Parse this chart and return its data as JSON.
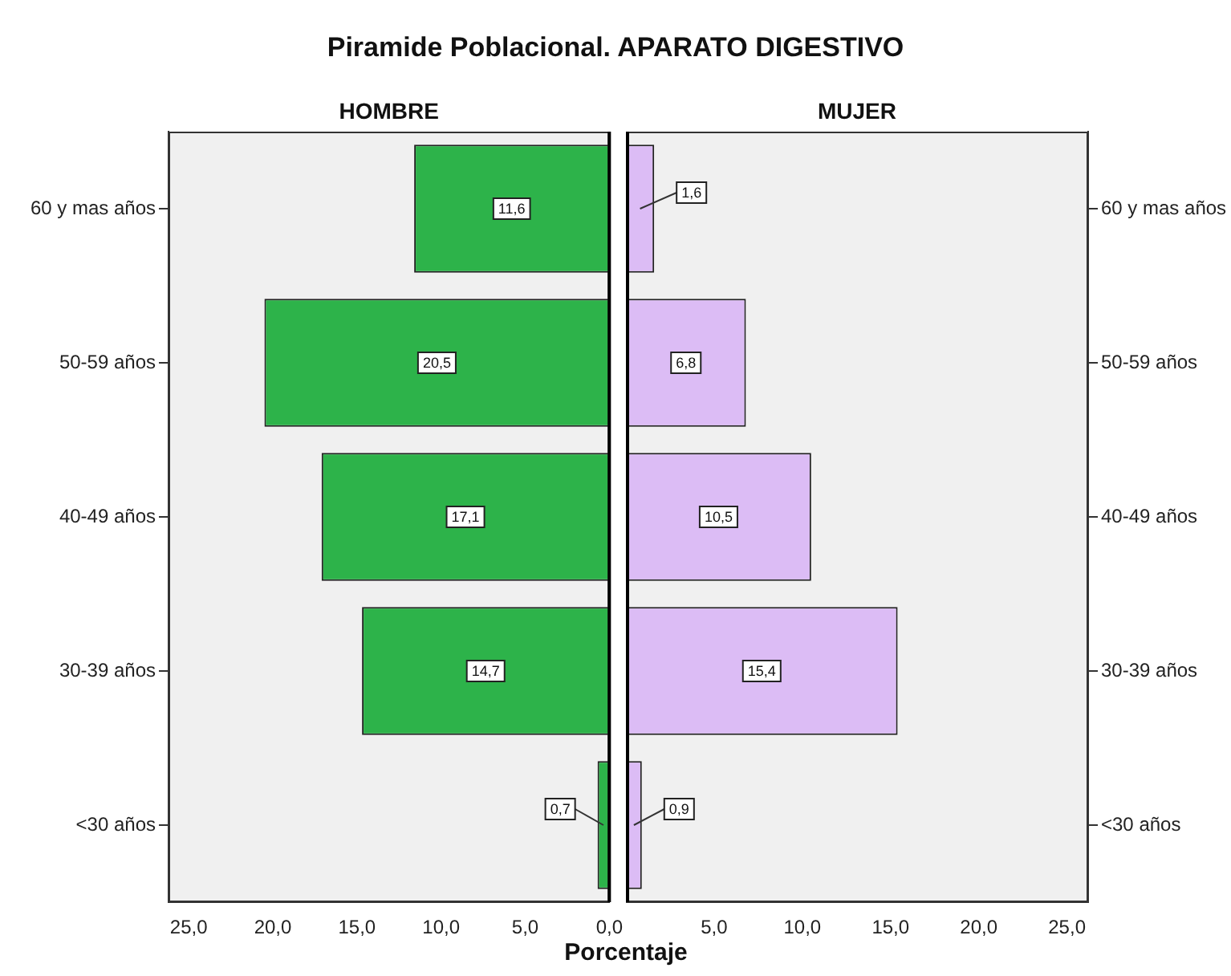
{
  "chart_data": [
    {
      "type": "bar",
      "orientation": "horizontal",
      "title": "Piramide Poblacional.  APARATO DIGESTIVO",
      "subtitle": "HOMBRE",
      "categories": [
        "60 y mas años",
        "50-59 años",
        "40-49 años",
        "30-39 años",
        "<30 años"
      ],
      "series": [
        {
          "color": "#2db34a",
          "values": [
            11.6,
            20.5,
            17.1,
            14.7,
            0.7
          ],
          "value_labels": [
            "11,6",
            "20,5",
            "17,1",
            "14,7",
            "0,7"
          ]
        }
      ],
      "xlim": [
        26.2,
        0
      ],
      "xticks": [
        {
          "value": 25,
          "label": "25,0"
        },
        {
          "value": 20,
          "label": "20,0"
        },
        {
          "value": 15,
          "label": "15,0"
        },
        {
          "value": 10,
          "label": "10,0"
        },
        {
          "value": 5,
          "label": "5,0"
        },
        {
          "value": 0,
          "label": "0,0"
        }
      ],
      "ref_lines": [
        {
          "axis": "x",
          "value": 0,
          "color": "#000000"
        }
      ]
    },
    {
      "type": "bar",
      "orientation": "horizontal",
      "subtitle": "MUJER",
      "xlabel": "Porcentaje",
      "categories": [
        "60 y mas años",
        "50-59 años",
        "40-49 años",
        "30-39 años",
        "<30 años"
      ],
      "series": [
        {
          "color": "#dcbcf5",
          "values": [
            1.6,
            6.8,
            10.5,
            15.4,
            0.9
          ],
          "value_labels": [
            "1,6",
            "6,8",
            "10,5",
            "15,4",
            "0,9"
          ]
        }
      ],
      "xlim": [
        0,
        26.2
      ],
      "xticks": [
        {
          "value": 5,
          "label": "5,0"
        },
        {
          "value": 10,
          "label": "10,0"
        },
        {
          "value": 15,
          "label": "15,0"
        },
        {
          "value": 20,
          "label": "20,0"
        },
        {
          "value": 25,
          "label": "25,0"
        }
      ],
      "ref_lines": [
        {
          "axis": "x",
          "value": 0,
          "color": "#000000"
        }
      ]
    }
  ]
}
